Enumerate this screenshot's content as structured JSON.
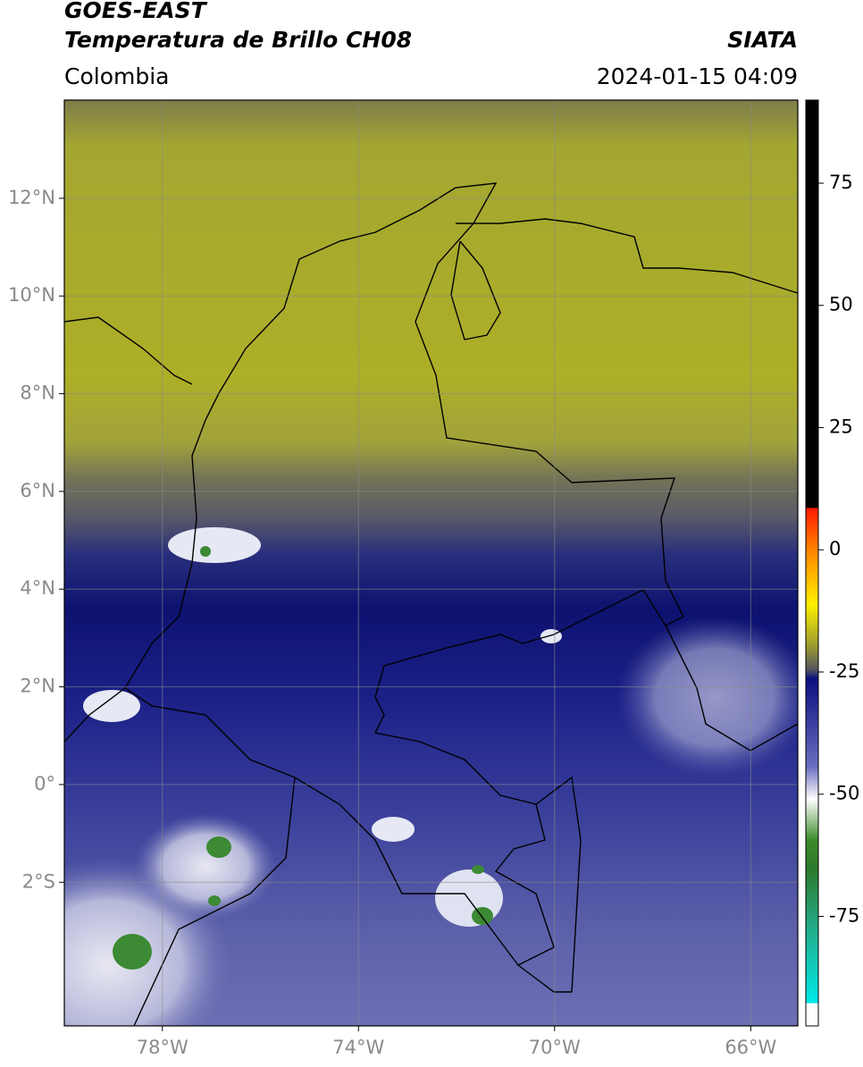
{
  "header": {
    "satellite": "GOES-EAST",
    "product": "Temperatura de Brillo CH08",
    "region": "Colombia",
    "source": "SIATA",
    "datetime": "2024-01-15 04:09"
  },
  "map": {
    "lon_range": [
      -80,
      -65.04
    ],
    "lat_range": [
      -4.94,
      14.01
    ],
    "lon_ticks": [
      {
        "value": -78,
        "label": "78°W"
      },
      {
        "value": -74,
        "label": "74°W"
      },
      {
        "value": -70,
        "label": "70°W"
      },
      {
        "value": -66,
        "label": "66°W"
      }
    ],
    "lat_ticks": [
      {
        "value": 12,
        "label": "12°N"
      },
      {
        "value": 10,
        "label": "10°N"
      },
      {
        "value": 8,
        "label": "8°N"
      },
      {
        "value": 6,
        "label": "6°N"
      },
      {
        "value": 4,
        "label": "4°N"
      },
      {
        "value": 2,
        "label": "2°N"
      },
      {
        "value": 0,
        "label": "0°"
      },
      {
        "value": -2,
        "label": "2°S"
      }
    ]
  },
  "colorbar": {
    "range": [
      -97.4,
      92
    ],
    "ticks": [
      75,
      50,
      25,
      0,
      -25,
      -50,
      -75
    ]
  }
}
